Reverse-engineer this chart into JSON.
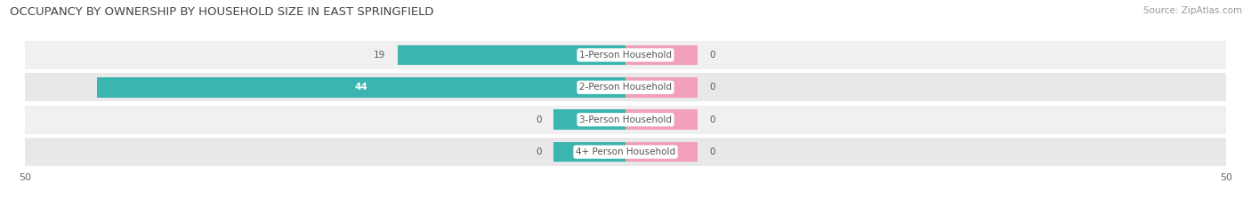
{
  "title": "OCCUPANCY BY OWNERSHIP BY HOUSEHOLD SIZE IN EAST SPRINGFIELD",
  "source": "Source: ZipAtlas.com",
  "categories": [
    "1-Person Household",
    "2-Person Household",
    "3-Person Household",
    "4+ Person Household"
  ],
  "owner_values": [
    19,
    44,
    0,
    0
  ],
  "renter_values": [
    0,
    0,
    0,
    0
  ],
  "owner_color": "#3ab5b0",
  "renter_color": "#f0a0b8",
  "row_bg_colors": [
    "#f0f0f0",
    "#e8e8e8",
    "#f0f0f0",
    "#e8e8e8"
  ],
  "row_border_color": "#ffffff",
  "xlim": 50,
  "min_bar_width": 6,
  "title_fontsize": 9.5,
  "source_fontsize": 7.5,
  "cat_label_fontsize": 7.5,
  "value_fontsize": 7.5,
  "tick_fontsize": 8,
  "legend_fontsize": 8,
  "fig_bg_color": "#ffffff",
  "label_text_color": "#555555",
  "title_color": "#444444",
  "source_color": "#999999",
  "tick_color": "#666666"
}
